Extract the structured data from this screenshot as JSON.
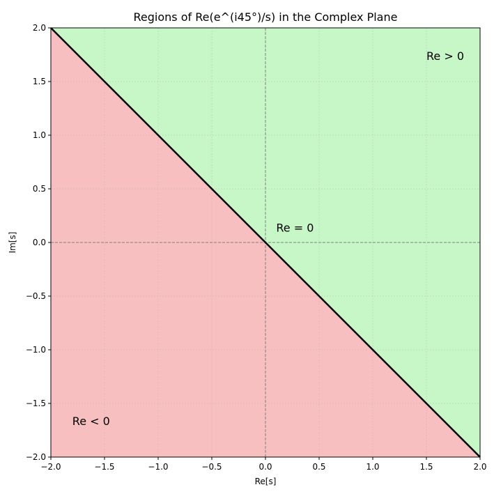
{
  "chart_data": {
    "type": "line",
    "title": "Regions of Re(e^(i45°)/s) in the Complex Plane",
    "x_label": "Re[s]",
    "y_label": "Im[s]",
    "x": [
      -2,
      2
    ],
    "series": [
      {
        "values": [
          2,
          -2
        ],
        "color": "#000000"
      }
    ],
    "fill_above_color": "rgba(144,238,144,0.5)",
    "fill_below_color": "rgba(240,128,128,0.5)",
    "axhline": 0,
    "axvline": 0,
    "xlim": [
      -2,
      2
    ],
    "ylim": [
      -2,
      2
    ],
    "xticks": [
      {
        "value": -2,
        "label": "−2.0"
      },
      {
        "value": -1.5,
        "label": "−1.5"
      },
      {
        "value": -1,
        "label": "−1.0"
      },
      {
        "value": -0.5,
        "label": "−0.5"
      },
      {
        "value": 0,
        "label": "0.0"
      },
      0.5,
      {
        "value": 1,
        "label": "1.0"
      },
      1.5,
      {
        "value": 2,
        "label": "2.0"
      }
    ],
    "yticks": [
      {
        "value": -2,
        "label": "−2.0"
      },
      {
        "value": -1.5,
        "label": "−1.5"
      },
      {
        "value": -1,
        "label": "−1.0"
      },
      {
        "value": -0.5,
        "label": "−0.5"
      },
      {
        "value": 0,
        "label": "0.0"
      },
      0.5,
      {
        "value": 1,
        "label": "1.0"
      },
      1.5,
      {
        "value": 2,
        "label": "2.0"
      }
    ],
    "grid": true,
    "annotations": [
      {
        "text": "Re > 0",
        "x": 1.5,
        "y": 1.7,
        "color": "#008000"
      },
      {
        "text": "Re < 0",
        "x": -1.8,
        "y": -1.7,
        "color": "#8b0000"
      },
      {
        "text": "Re = 0",
        "x": 0.1,
        "y": 0.1,
        "color": "#000000"
      }
    ]
  }
}
